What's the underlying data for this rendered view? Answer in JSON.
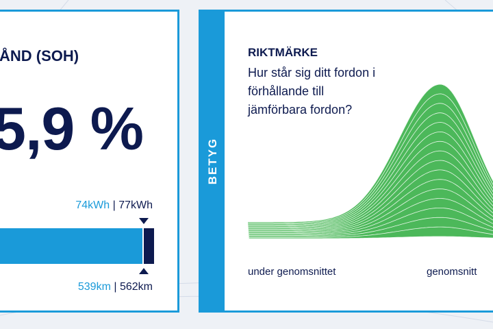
{
  "left_panel": {
    "heading": "ÅND (SOH)",
    "value": "5,9 %",
    "capacity": {
      "current": "74kWh",
      "separator": "|",
      "original": "77kWh"
    },
    "range": {
      "current": "539km",
      "separator": "|",
      "original": "562km"
    }
  },
  "right_panel": {
    "tab": "BETYG",
    "title": "RIKTMÄRKE",
    "question_lines": [
      "Hur står sig ditt fordon i",
      "förhållande till",
      "jämförbara fordon?"
    ],
    "axis_labels": [
      "under genomsnittet",
      "genomsnitt"
    ]
  }
}
